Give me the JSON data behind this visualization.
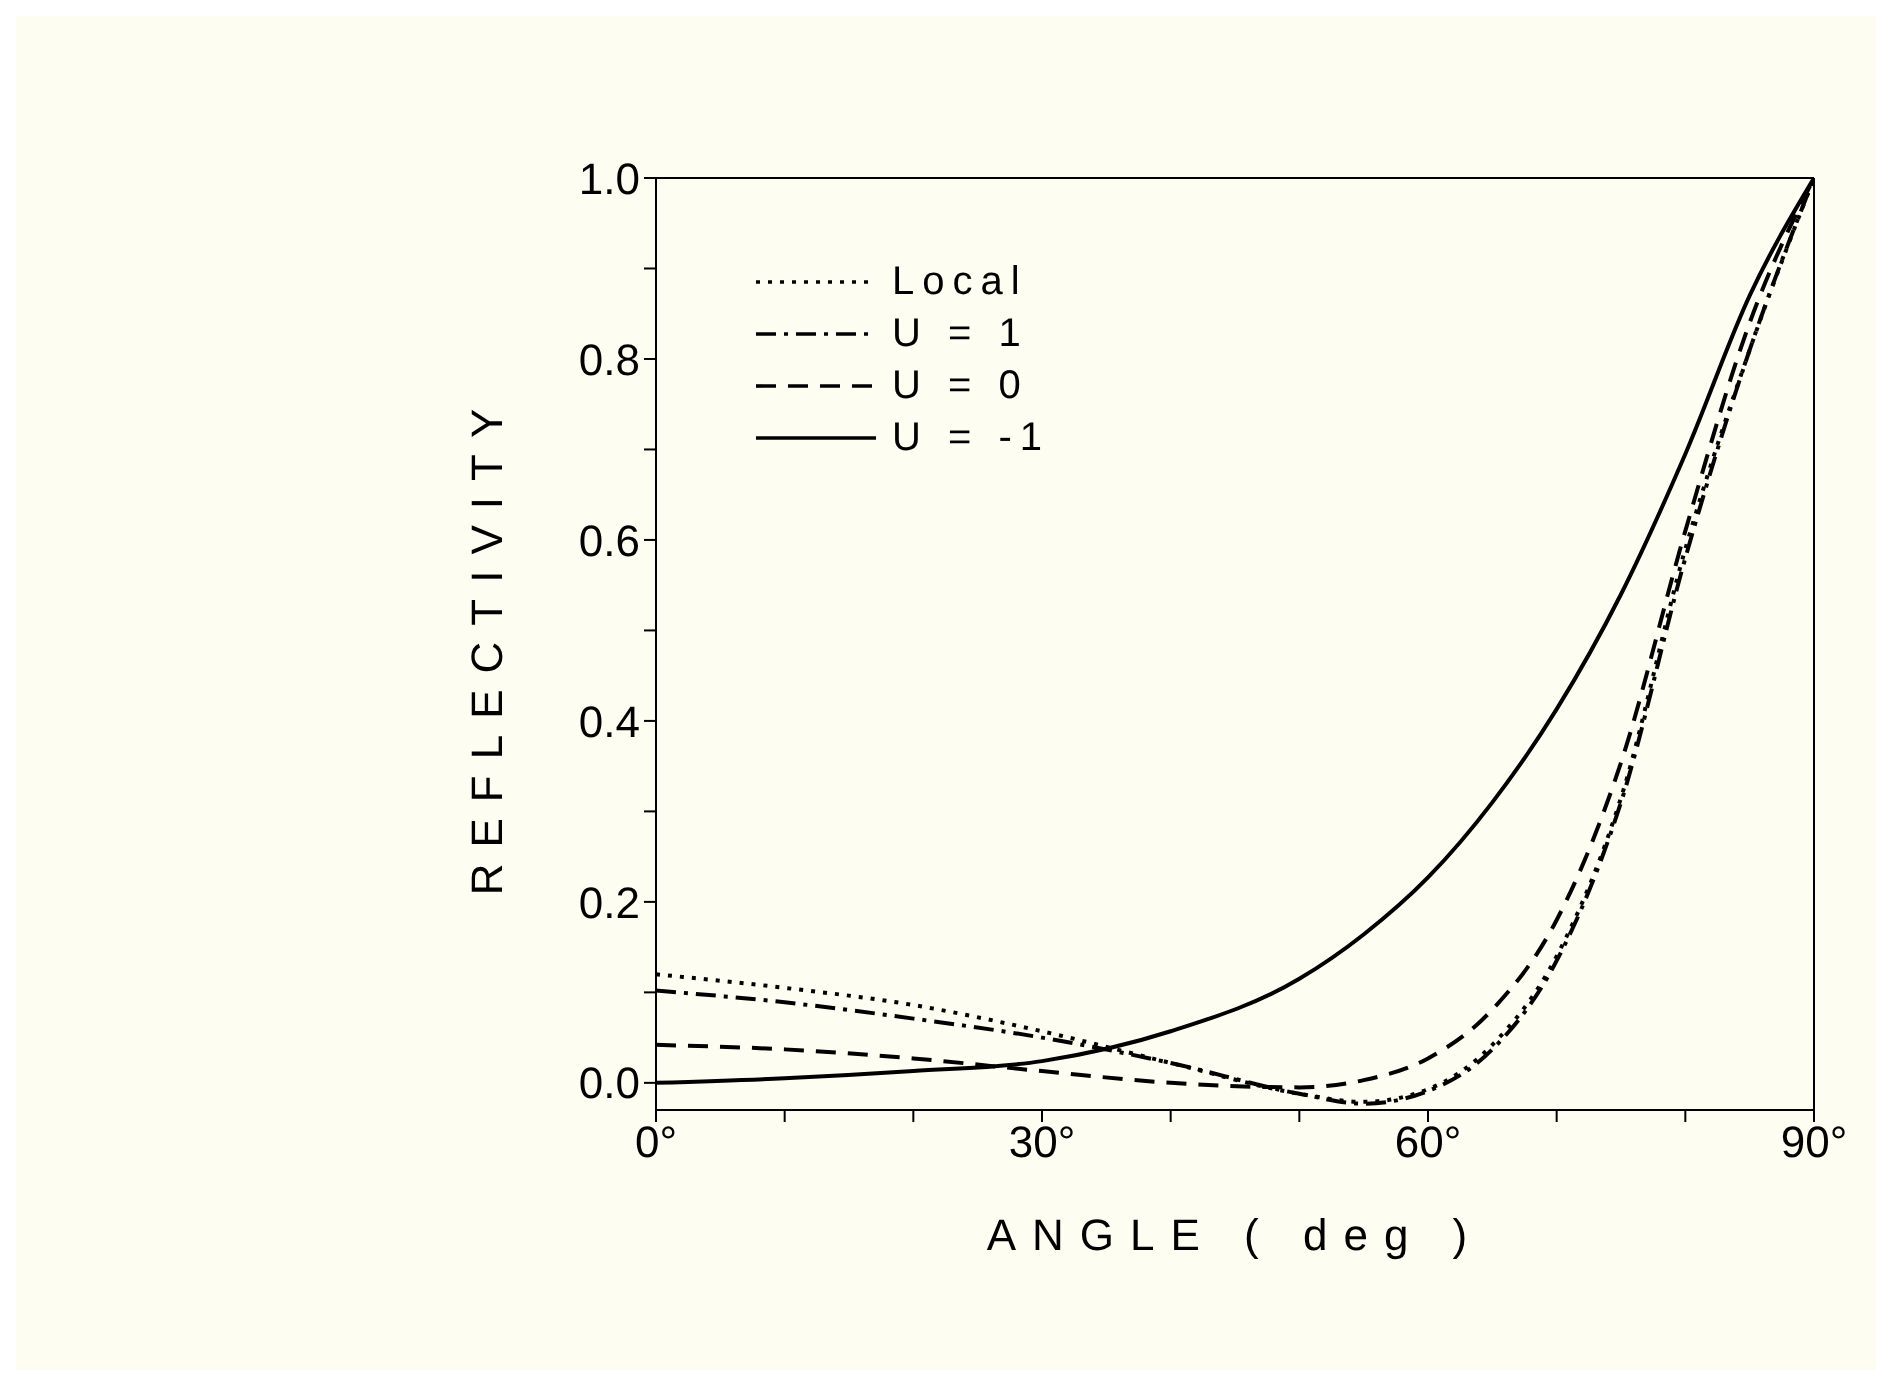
{
  "chart_data": {
    "type": "line",
    "xlabel": "ANGLE ( deg )",
    "ylabel": "REFLECTIVITY",
    "xlim": [
      0,
      90
    ],
    "ylim": [
      -0.03,
      1.0
    ],
    "xticks": [
      {
        "value": 0,
        "label": "0°"
      },
      {
        "value": 10,
        "label": null
      },
      {
        "value": 20,
        "label": null
      },
      {
        "value": 30,
        "label": "30°"
      },
      {
        "value": 40,
        "label": null
      },
      {
        "value": 50,
        "label": null
      },
      {
        "value": 60,
        "label": "60°"
      },
      {
        "value": 70,
        "label": null
      },
      {
        "value": 80,
        "label": null
      },
      {
        "value": 90,
        "label": "90°"
      }
    ],
    "yticks": [
      {
        "value": 0,
        "label": "0.0"
      },
      {
        "value": 0.1,
        "label": null
      },
      {
        "value": 0.2,
        "label": "0.2"
      },
      {
        "value": 0.3,
        "label": null
      },
      {
        "value": 0.4,
        "label": "0.4"
      },
      {
        "value": 0.5,
        "label": null
      },
      {
        "value": 0.6,
        "label": "0.6"
      },
      {
        "value": 0.7,
        "label": null
      },
      {
        "value": 0.8,
        "label": "0.8"
      },
      {
        "value": 0.9,
        "label": null
      },
      {
        "value": 1.0,
        "label": "1.0"
      }
    ],
    "x": [
      0,
      10,
      20,
      30,
      40,
      50,
      55,
      60,
      65,
      70,
      75,
      80,
      85,
      90
    ],
    "legend": "top left",
    "marker": "none",
    "grid": false,
    "series": [
      {
        "name": "Local",
        "color": "#000000",
        "line_style": "dotted",
        "values": [
          0.12,
          0.105,
          0.086,
          0.057,
          0.022,
          -0.012,
          -0.021,
          -0.007,
          0.042,
          0.14,
          0.315,
          0.59,
          0.81,
          1.0
        ]
      },
      {
        "name": "U = 1",
        "color": "#000000",
        "line_style": "dashdot",
        "values": [
          0.102,
          0.089,
          0.071,
          0.05,
          0.022,
          -0.012,
          -0.023,
          -0.009,
          0.037,
          0.135,
          0.31,
          0.58,
          0.81,
          1.0
        ]
      },
      {
        "name": "U = 0",
        "color": "#000000",
        "line_style": "dashed",
        "values": [
          0.042,
          0.037,
          0.027,
          0.013,
          0,
          -0.005,
          0.003,
          0.027,
          0.081,
          0.18,
          0.354,
          0.61,
          0.84,
          1.0
        ]
      },
      {
        "name": "U = -1",
        "color": "#000000",
        "line_style": "solid",
        "values": [
          0,
          0.005,
          0.013,
          0.024,
          0.057,
          0.115,
          0.164,
          0.227,
          0.31,
          0.413,
          0.54,
          0.695,
          0.87,
          1.0
        ]
      }
    ]
  }
}
